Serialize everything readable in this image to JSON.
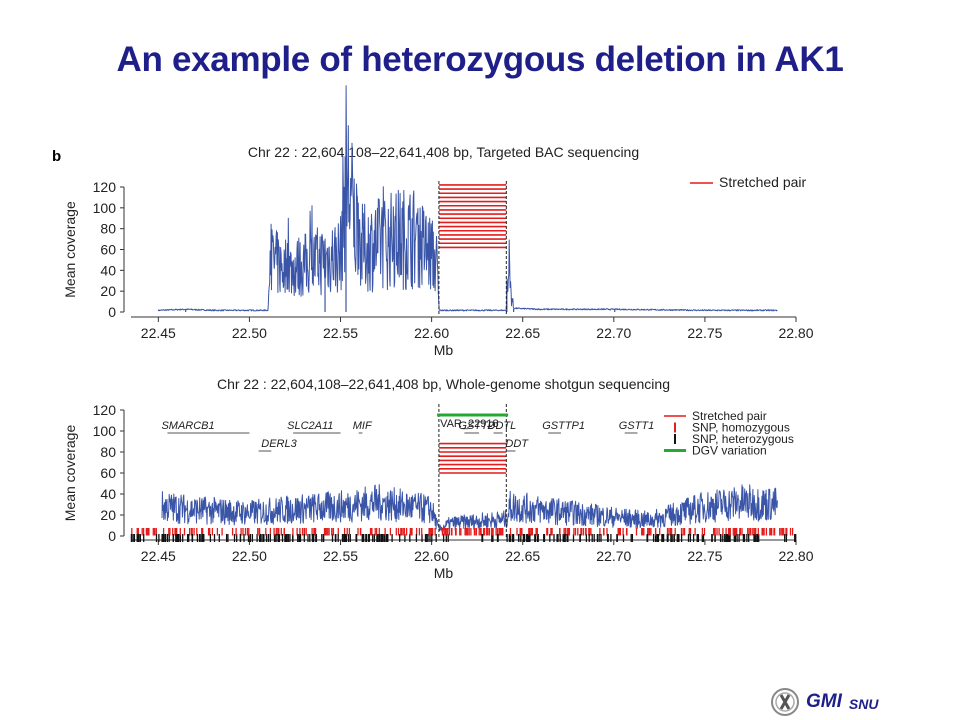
{
  "slide": {
    "title": "An example of heterozygous deletion in AK1",
    "panel_label": "b",
    "logo_text": "GMI",
    "logo_sub": "SNU"
  },
  "colors": {
    "coverage": "#3a55a8",
    "stretched": "#e41c1c",
    "snp_hom": "#e41c1c",
    "snp_het": "#111111",
    "dgv": "#22aa33",
    "title": "#1f1f8a"
  },
  "chart_data": [
    {
      "type": "line",
      "title": "Chr 22 : 22,604,108–22,641,408 bp, Targeted BAC sequencing",
      "xlabel": "Mb",
      "ylabel": "Mean coverage",
      "xlim": [
        22.435,
        22.8
      ],
      "ylim": [
        0,
        120
      ],
      "xticks": [
        "22.45",
        "22.50",
        "22.55",
        "22.60",
        "22.65",
        "22.70",
        "22.75",
        "22.80"
      ],
      "yticks": [
        "0",
        "20",
        "40",
        "60",
        "80",
        "100",
        "120"
      ],
      "deletion_start": 22.604,
      "deletion_end": 22.641,
      "legend_position": "top-right",
      "legend": [
        {
          "label": "Stretched pair",
          "kind": "line",
          "color": "#e41c1c"
        }
      ],
      "series": [
        {
          "name": "Coverage",
          "x": [
            22.45,
            22.465,
            22.48,
            22.5,
            22.51,
            22.512,
            22.52,
            22.53,
            22.54,
            22.55,
            22.553,
            22.56,
            22.57,
            22.58,
            22.59,
            22.6,
            22.603,
            22.6041,
            22.641,
            22.6415,
            22.645,
            22.66,
            22.7,
            22.75,
            22.79
          ],
          "y": [
            1,
            2,
            1,
            1,
            1,
            50,
            40,
            45,
            50,
            55,
            135,
            60,
            65,
            70,
            72,
            55,
            45,
            1,
            1,
            44,
            3,
            2,
            2,
            1,
            1
          ]
        },
        {
          "name": "Stretched pair",
          "kind": "segments",
          "x0": 22.604,
          "x1": 22.641,
          "y": [
            62,
            66,
            70,
            74,
            78,
            82,
            86,
            90,
            94,
            98,
            102,
            106,
            110,
            114,
            118,
            122
          ]
        }
      ]
    },
    {
      "type": "line",
      "title": "Chr 22 : 22,604,108–22,641,408 bp, Whole-genome shotgun sequencing",
      "xlabel": "Mb",
      "ylabel": "Mean coverage",
      "xlim": [
        22.435,
        22.8
      ],
      "ylim": [
        0,
        120
      ],
      "xticks": [
        "22.45",
        "22.50",
        "22.55",
        "22.60",
        "22.65",
        "22.70",
        "22.75",
        "22.80"
      ],
      "yticks": [
        "0",
        "20",
        "40",
        "60",
        "80",
        "100",
        "120"
      ],
      "deletion_start": 22.604,
      "deletion_end": 22.641,
      "legend_position": "top-right",
      "legend": [
        {
          "label": "Stretched pair",
          "kind": "line",
          "color": "#e41c1c"
        },
        {
          "label": "SNP, homozygous",
          "kind": "tick",
          "color": "#e41c1c"
        },
        {
          "label": "SNP, heterozygous",
          "kind": "tick",
          "color": "#111111"
        },
        {
          "label": "DGV variation",
          "kind": "thick",
          "color": "#22aa33"
        }
      ],
      "genes": [
        {
          "label": "SMARCB1",
          "start": 22.455,
          "end": 22.5,
          "row": 1
        },
        {
          "label": "DERL3",
          "start": 22.505,
          "end": 22.512,
          "row": 2
        },
        {
          "label": "SLC2A11",
          "start": 22.524,
          "end": 22.55,
          "row": 1
        },
        {
          "label": "MIF",
          "start": 22.56,
          "end": 22.562,
          "row": 1
        },
        {
          "label": "GSTT2",
          "start": 22.618,
          "end": 22.626,
          "row": 1
        },
        {
          "label": "DDTL",
          "start": 22.634,
          "end": 22.639,
          "row": 1
        },
        {
          "label": "DDT",
          "start": 22.641,
          "end": 22.646,
          "row": 2
        },
        {
          "label": "GSTTP1",
          "start": 22.664,
          "end": 22.671,
          "row": 1
        },
        {
          "label": "GSTT1",
          "start": 22.706,
          "end": 22.713,
          "row": 1
        }
      ],
      "dgv": {
        "label": "VAR_22918",
        "start": 22.603,
        "end": 22.642
      },
      "series": [
        {
          "name": "Coverage",
          "x": [
            22.452,
            22.47,
            22.5,
            22.52,
            22.55,
            22.57,
            22.6,
            22.604,
            22.61,
            22.625,
            22.641,
            22.643,
            22.66,
            22.7,
            22.72,
            22.75,
            22.77,
            22.79
          ],
          "y": [
            28,
            25,
            22,
            25,
            28,
            32,
            25,
            6,
            12,
            14,
            16,
            28,
            25,
            18,
            15,
            28,
            32,
            30
          ]
        },
        {
          "name": "Stretched pair",
          "kind": "segments",
          "x0": 22.604,
          "x1": 22.641,
          "y": [
            60,
            64,
            68,
            72,
            76,
            80,
            84,
            88
          ]
        }
      ]
    }
  ]
}
